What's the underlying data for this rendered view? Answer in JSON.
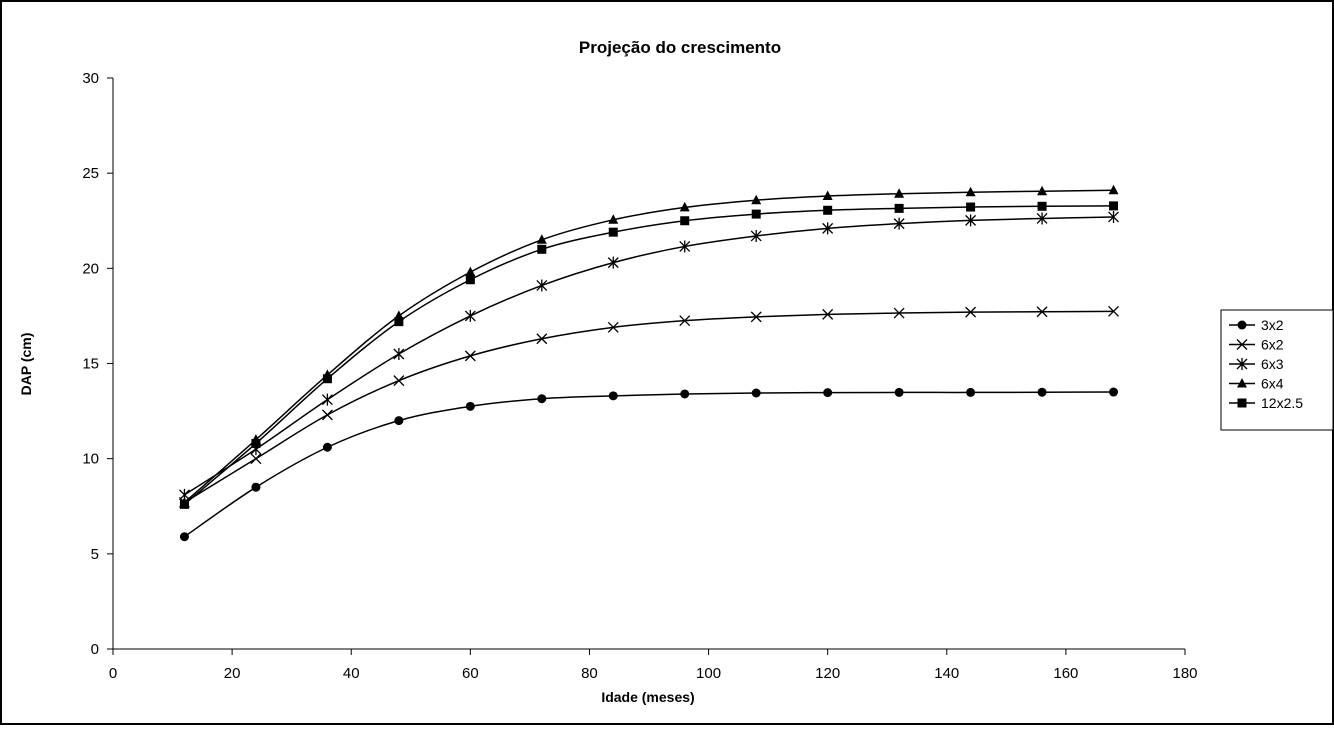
{
  "chart_data": {
    "type": "line",
    "title": "Projeção do crescimento",
    "xlabel": "Idade (meses)",
    "ylabel": "DAP (cm)",
    "xlim": [
      0,
      180
    ],
    "ylim": [
      0,
      30
    ],
    "x_ticks": [
      0,
      20,
      40,
      60,
      80,
      100,
      120,
      140,
      160,
      180
    ],
    "y_ticks": [
      0,
      5,
      10,
      15,
      20,
      25,
      30
    ],
    "grid": false,
    "legend_position": "right",
    "x": [
      12,
      24,
      36,
      48,
      60,
      72,
      84,
      96,
      108,
      120,
      132,
      144,
      156,
      168
    ],
    "series": [
      {
        "name": "3x2",
        "marker": "circle",
        "color": "#000000",
        "values": [
          5.9,
          8.5,
          10.6,
          12.0,
          12.75,
          13.15,
          13.3,
          13.4,
          13.45,
          13.47,
          13.48,
          13.48,
          13.49,
          13.5
        ]
      },
      {
        "name": "6x2",
        "marker": "x",
        "color": "#000000",
        "values": [
          7.7,
          10.0,
          12.3,
          14.1,
          15.4,
          16.3,
          16.9,
          17.25,
          17.45,
          17.58,
          17.65,
          17.7,
          17.72,
          17.74
        ]
      },
      {
        "name": "6x3",
        "marker": "star",
        "color": "#000000",
        "values": [
          8.1,
          10.5,
          13.1,
          15.5,
          17.5,
          19.1,
          20.3,
          21.15,
          21.7,
          22.1,
          22.35,
          22.52,
          22.62,
          22.7
        ]
      },
      {
        "name": "6x4",
        "marker": "triangle",
        "color": "#000000",
        "values": [
          7.7,
          11.0,
          14.4,
          17.5,
          19.8,
          21.5,
          22.55,
          23.2,
          23.58,
          23.8,
          23.92,
          24.0,
          24.05,
          24.1
        ]
      },
      {
        "name": "12x2.5",
        "marker": "square",
        "color": "#000000",
        "values": [
          7.6,
          10.8,
          14.2,
          17.2,
          19.4,
          21.0,
          21.9,
          22.5,
          22.85,
          23.05,
          23.15,
          23.22,
          23.26,
          23.28
        ]
      }
    ]
  }
}
